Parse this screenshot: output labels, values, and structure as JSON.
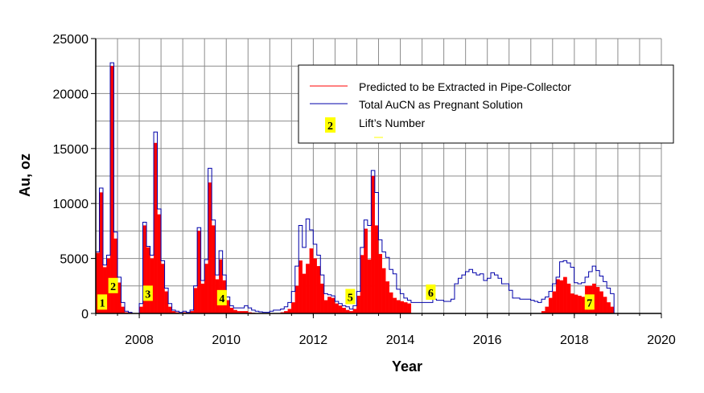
{
  "chart_data": {
    "type": "bar",
    "xlabel": "Year",
    "ylabel": "Au, oz",
    "xlim": [
      2007.0,
      2020.0
    ],
    "ylim": [
      0,
      25000
    ],
    "x_ticks": [
      2008,
      2010,
      2012,
      2014,
      2016,
      2018,
      2020
    ],
    "y_ticks": [
      0,
      5000,
      10000,
      15000,
      20000,
      25000
    ],
    "grid": true,
    "legend_position": "top-right",
    "bin_width_years": 0.0833,
    "x_start": 2007.0,
    "colors": {
      "extracted": "#ff0000",
      "pregnant": "#0000aa",
      "lift_marker": "#ffff00"
    },
    "series": [
      {
        "name": "Predicted to be Extracted in Pipe-Collector",
        "style": "filled-bars",
        "values": [
          5500,
          11000,
          4200,
          5000,
          22500,
          6800,
          2800,
          600,
          100,
          50,
          0,
          0,
          600,
          8000,
          6000,
          5000,
          15500,
          9000,
          4500,
          2000,
          600,
          200,
          100,
          0,
          100,
          50,
          200,
          2300,
          7500,
          2700,
          4500,
          11900,
          8000,
          3100,
          4900,
          3000,
          1200,
          500,
          300,
          200,
          200,
          200,
          100,
          50,
          0,
          0,
          0,
          0,
          0,
          0,
          0,
          100,
          200,
          400,
          1000,
          2500,
          4800,
          3600,
          4500,
          5900,
          5000,
          4300,
          2700,
          1200,
          1500,
          1400,
          900,
          700,
          500,
          300,
          200,
          400,
          1600,
          5300,
          7700,
          4900,
          12500,
          8000,
          5400,
          4100,
          2900,
          1900,
          1400,
          1200,
          1100,
          1000,
          900,
          0,
          0,
          0,
          0,
          0,
          0,
          0,
          0,
          0,
          0,
          0,
          0,
          0,
          0,
          0,
          0,
          0,
          0,
          0,
          0,
          0,
          0,
          0,
          0,
          0,
          0,
          0,
          0,
          0,
          0,
          0,
          0,
          0,
          0,
          0,
          0,
          200,
          600,
          1400,
          2000,
          3100,
          3000,
          3300,
          2700,
          1800,
          1700,
          1600,
          1500,
          2500,
          2500,
          2700,
          2400,
          2000,
          1500,
          1000,
          600
        ]
      },
      {
        "name": "Total AuCN as Pregnant Solution",
        "style": "step-line",
        "values": [
          5600,
          11400,
          4400,
          5300,
          22800,
          7400,
          3300,
          1000,
          200,
          100,
          0,
          0,
          900,
          8300,
          6100,
          5300,
          16500,
          9500,
          4800,
          2300,
          900,
          300,
          200,
          100,
          200,
          100,
          300,
          2500,
          7800,
          3000,
          4900,
          13200,
          8500,
          3500,
          5700,
          3500,
          1500,
          700,
          500,
          500,
          500,
          700,
          500,
          300,
          200,
          150,
          100,
          100,
          200,
          300,
          300,
          400,
          600,
          1000,
          2000,
          4300,
          8000,
          6000,
          8600,
          7600,
          6300,
          5300,
          3500,
          1800,
          1700,
          1600,
          1100,
          900,
          700,
          600,
          400,
          700,
          2000,
          6000,
          8500,
          8000,
          13000,
          11000,
          6700,
          5600,
          5100,
          4000,
          3600,
          2200,
          1800,
          1400,
          1200,
          1000,
          1000,
          1000,
          1000,
          1000,
          1000,
          1300,
          1200,
          1200,
          1100,
          1100,
          1300,
          2700,
          3200,
          3500,
          3800,
          4000,
          3700,
          3500,
          3600,
          3000,
          3200,
          3700,
          3500,
          3200,
          2700,
          2700,
          2100,
          1400,
          1400,
          1300,
          1300,
          1300,
          1200,
          1100,
          1000,
          1300,
          1500,
          2000,
          2700,
          3300,
          4700,
          4800,
          4600,
          4200,
          2800,
          2700,
          2800,
          3300,
          3800,
          4300,
          3900,
          3400,
          2900,
          2300,
          1800
        ]
      }
    ],
    "legend_symbol_label": "2",
    "lift_labels": [
      {
        "label": "1",
        "x": 2007.15,
        "y": 1000
      },
      {
        "label": "2",
        "x": 2007.4,
        "y": 2500
      },
      {
        "label": "3",
        "x": 2008.2,
        "y": 1800
      },
      {
        "label": "4",
        "x": 2009.9,
        "y": 1400
      },
      {
        "label": "5",
        "x": 2012.85,
        "y": 1500
      },
      {
        "label": "6",
        "x": 2014.7,
        "y": 1900
      },
      {
        "label": "7",
        "x": 2018.35,
        "y": 1000
      }
    ]
  }
}
